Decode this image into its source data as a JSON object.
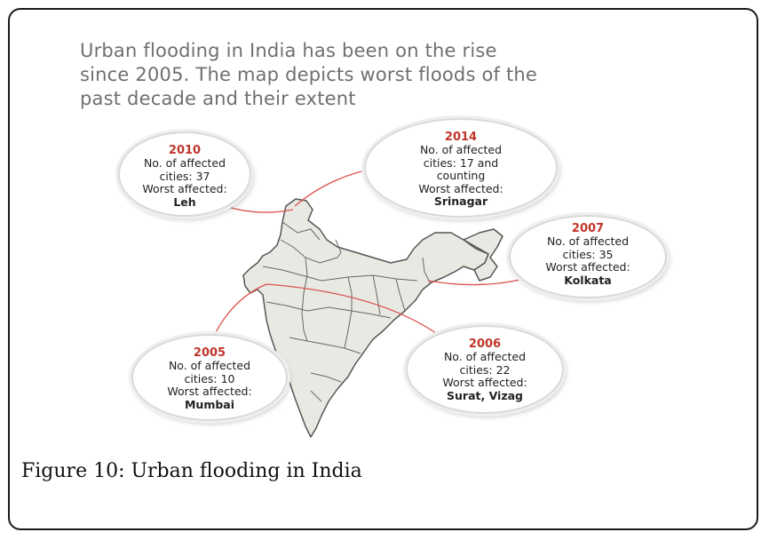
{
  "headline": {
    "line1": "Urban flooding in India has been on the rise",
    "line2": "since 2005. The map depicts worst floods of the",
    "line3": "past decade and their extent"
  },
  "floods": [
    {
      "year": "2010",
      "l1": "No. of affected",
      "l2": "cities: 37",
      "l3": "Worst affected:",
      "city": "Leh"
    },
    {
      "year": "2014",
      "l1": "No. of affected",
      "l2": "cities: 17 and",
      "l2b": "counting",
      "l3": "Worst affected:",
      "city": "Srinagar"
    },
    {
      "year": "2007",
      "l1": "No. of affected",
      "l2": "cities: 35",
      "l3": "Worst affected:",
      "city": "Kolkata"
    },
    {
      "year": "2005",
      "l1": "No. of affected",
      "l2": "cities: 10",
      "l3": "Worst affected:",
      "city": "Mumbai"
    },
    {
      "year": "2006",
      "l1": "No. of affected",
      "l2": "cities: 22",
      "l3": "Worst affected:",
      "city": "Surat, Vizag"
    }
  ],
  "caption": {
    "label": "Figure 10:",
    "text": "Urban flooding in India"
  },
  "colors": {
    "year": "#c0352b",
    "connector": "#d9534f",
    "land": "#e9e9e4",
    "border": "#555555"
  }
}
